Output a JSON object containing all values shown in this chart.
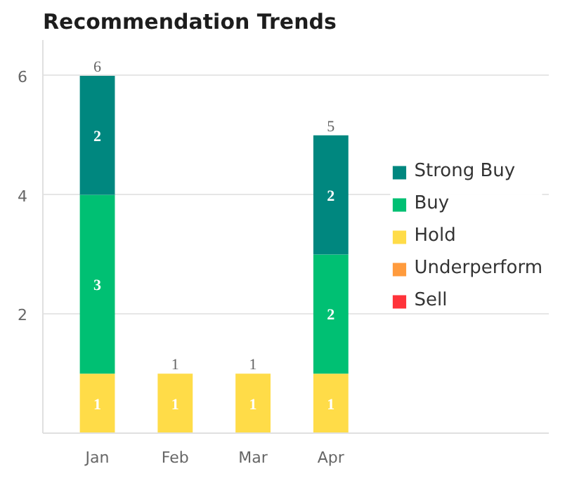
{
  "chart_data": {
    "type": "bar",
    "title": "Recommendation Trends",
    "stacked": true,
    "categories": [
      "Jan",
      "Feb",
      "Mar",
      "Apr"
    ],
    "series": [
      {
        "name": "Sell",
        "color": "#ff333a",
        "values": [
          null,
          null,
          null,
          null
        ]
      },
      {
        "name": "Underperform",
        "color": "#ff9b3d",
        "values": [
          null,
          null,
          null,
          null
        ]
      },
      {
        "name": "Hold",
        "color": "#ffdc48",
        "values": [
          1,
          1,
          1,
          1
        ]
      },
      {
        "name": "Buy",
        "color": "#00c073",
        "values": [
          3,
          null,
          null,
          2
        ]
      },
      {
        "name": "Strong Buy",
        "color": "#00877f",
        "values": [
          2,
          null,
          null,
          2
        ]
      }
    ],
    "ylim": [
      0,
      6.6
    ],
    "yticks": [
      2,
      4,
      6
    ],
    "grid": "y",
    "legend": "right",
    "data_labels": true,
    "totals": [
      "6",
      "1",
      "1",
      "5"
    ]
  }
}
